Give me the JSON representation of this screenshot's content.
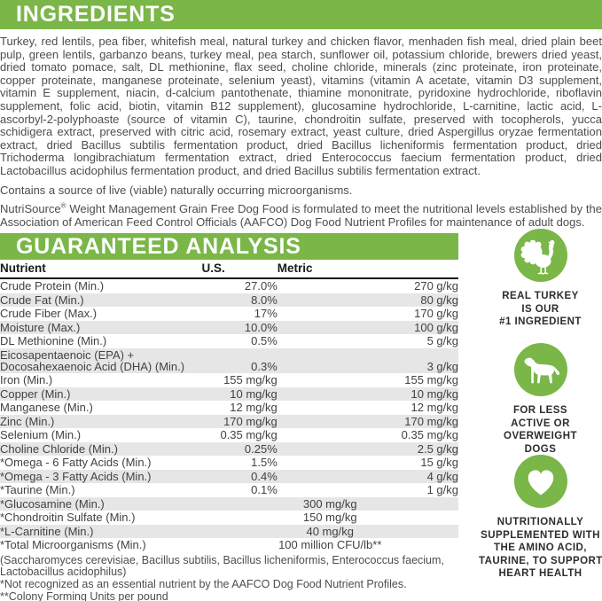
{
  "colors": {
    "green": "#7ab648",
    "row_shade": "#e6e6e6"
  },
  "ingredients": {
    "title": "INGREDIENTS",
    "list": "Turkey, red lentils, pea fiber, whitefish meal, natural turkey and chicken flavor, menhaden fish meal, dried plain beet pulp, green lentils, garbanzo beans, turkey meal, pea starch, sunflower oil, potassium chloride, brewers dried yeast, dried tomato pomace, salt, DL methionine, flax seed, choline chloride, minerals (zinc proteinate, iron proteinate, copper proteinate, manganese proteinate, selenium yeast), vitamins (vitamin A acetate, vitamin D3 supplement, vitamin E supplement, niacin, d-calcium pantothenate, thiamine mononitrate, pyridoxine hydrochloride, riboflavin supplement, folic acid, biotin, vitamin B12 supplement), glucosamine hydrochloride, L-carnitine, lactic acid, L-ascorbyl-2-polyphoaste (source of vitamin C), taurine, chondroitin sulfate, preserved with tocopherols, yucca schidigera extract, preserved with citric acid, rosemary extract, yeast culture, dried Aspergillus oryzae fermentation extract, dried Bacillus subtilis fermentation product, dried Bacillus licheniformis fermentation product, dried Trichoderma longibrachiatum fermentation extract, dried Enterococcus faecium fermentation product, dried Lactobacillus acidophilus fermentation product, and dried Bacillus subtilis fermentation extract.",
    "note_live": "Contains a source of live (viable) naturally occurring microorganisms.",
    "aafco": {
      "brand": "NutriSource",
      "reg": "®",
      "text": " Weight Management Grain Free Dog Food is formulated to meet the nutritional levels established by the Association of American Feed Control Officials (AAFCO) Dog Food Nutrient Profiles for maintenance of adult dogs."
    }
  },
  "guaranteed_analysis": {
    "title": "GUARANTEED ANALYSIS",
    "columns": [
      "Nutrient",
      "U.S.",
      "Metric"
    ],
    "rows": [
      {
        "label": "Crude Protein (Min.)",
        "us": "27.0%",
        "metric": "270 g/kg"
      },
      {
        "label": "Crude Fat (Min.)",
        "us": "8.0%",
        "metric": "80 g/kg"
      },
      {
        "label": "Crude Fiber (Max.)",
        "us": "17%",
        "metric": "170 g/kg"
      },
      {
        "label": "Moisture (Max.)",
        "us": "10.0%",
        "metric": "100 g/kg"
      },
      {
        "label": "DL Methionine (Min.)",
        "us": "0.5%",
        "metric": "5 g/kg"
      },
      {
        "label": "Eicosapentaenoic (EPA) + Docosahexaenoic Acid (DHA) (Min.)",
        "us": "0.3%",
        "metric": "3 g/kg"
      },
      {
        "label": "Iron (Min.)",
        "us": "155 mg/kg",
        "metric": "155 mg/kg"
      },
      {
        "label": "Copper (Min.)",
        "us": "10 mg/kg",
        "metric": "10 mg/kg"
      },
      {
        "label": "Manganese (Min.)",
        "us": "12 mg/kg",
        "metric": "12 mg/kg"
      },
      {
        "label": "Zinc (Min.)",
        "us": "170 mg/kg",
        "metric": "170 mg/kg"
      },
      {
        "label": "Selenium (Min.)",
        "us": "0.35 mg/kg",
        "metric": "0.35 mg/kg"
      },
      {
        "label": "Choline Chloride (Min.)",
        "us": "0.25%",
        "metric": "2.5 g/kg"
      },
      {
        "label": "*Omega - 6 Fatty Acids (Min.)",
        "us": "1.5%",
        "metric": "15 g/kg"
      },
      {
        "label": "*Omega - 3 Fatty Acids (Min.)",
        "us": "0.4%",
        "metric": "4 g/kg"
      },
      {
        "label": "*Taurine (Min.)",
        "us": "0.1%",
        "metric": "1 g/kg"
      },
      {
        "label": "*Glucosamine (Min.)",
        "value": "300 mg/kg",
        "span": true
      },
      {
        "label": "*Chondroitin Sulfate (Min.)",
        "value": "150 mg/kg",
        "span": true
      },
      {
        "label": "*L-Carnitine (Min.)",
        "value": "40 mg/kg",
        "span": true
      },
      {
        "label": "*Total Microorganisms (Min.)",
        "value": "100 million CFU/lb**",
        "span": true
      }
    ],
    "footnotes": [
      "(Saccharomyces cerevisiae, Bacillus subtilis, Bacillus licheniformis, Enterococcus faecium, Lactobacillus acidophilus)",
      "*Not recognized as an essential nutrient by the AAFCO Dog Food Nutrient Profiles.",
      "**Colony Forming Units per pound"
    ]
  },
  "badges": [
    {
      "icon": "turkey-icon",
      "lines": [
        "REAL TURKEY",
        "IS OUR",
        "#1 INGREDIENT"
      ]
    },
    {
      "icon": "dog-icon",
      "lines": [
        "FOR LESS",
        "ACTIVE OR",
        "OVERWEIGHT",
        "DOGS"
      ]
    },
    {
      "icon": "heart-icon",
      "lines": [
        "NUTRITIONALLY",
        "SUPPLEMENTED WITH",
        "THE AMINO ACID,",
        "TAURINE, TO SUPPORT",
        "HEART HEALTH"
      ]
    }
  ]
}
